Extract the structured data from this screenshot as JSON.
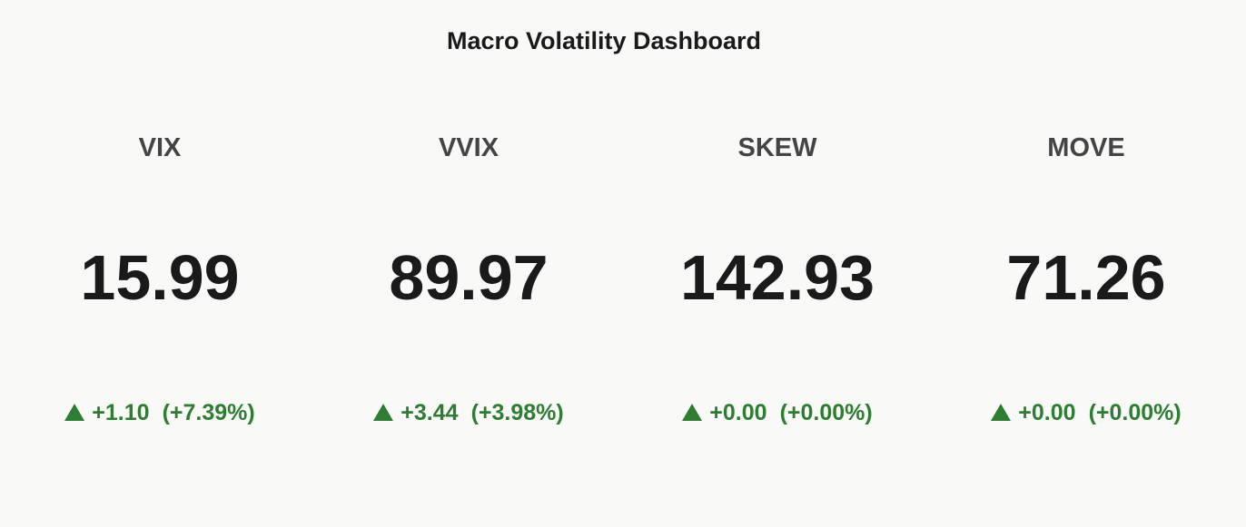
{
  "header": {
    "title": "Macro Volatility Dashboard"
  },
  "cards": [
    {
      "name": "VIX",
      "value": 15.99,
      "delta": "+1.10",
      "delta_pct": "(+7.39%)"
    },
    {
      "name": "VVIX",
      "value": 89.97,
      "delta": "+3.44",
      "delta_pct": "(+3.98%)"
    },
    {
      "name": "SKEW",
      "value": 142.93,
      "delta": "+0.00",
      "delta_pct": "(+0.00%)"
    },
    {
      "name": "MOVE",
      "value": 71.26,
      "delta": "+0.00",
      "delta_pct": "(+0.00%)"
    }
  ]
}
